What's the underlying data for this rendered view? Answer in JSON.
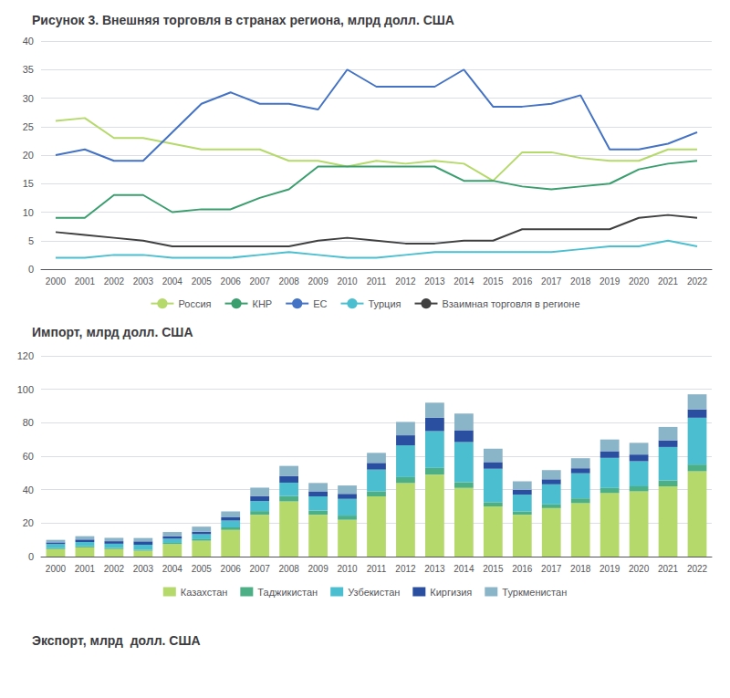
{
  "chart_data": [
    {
      "type": "line",
      "title": "Рисунок 3. Внешняя торговля в странах региона, млрд долл. США",
      "categories": [
        "2000",
        "2001",
        "2002",
        "2003",
        "2004",
        "2005",
        "2006",
        "2007",
        "2008",
        "2009",
        "2010",
        "2011",
        "2012",
        "2013",
        "2014",
        "2015",
        "2016",
        "2017",
        "2018",
        "2019",
        "2020",
        "2021",
        "2022"
      ],
      "series": [
        {
          "name": "Россия",
          "color": "#b5d96a",
          "values": [
            26,
            26.5,
            23,
            23,
            22,
            21,
            21,
            21,
            19,
            19,
            18,
            19,
            18.5,
            19,
            18.5,
            15.5,
            20.5,
            20.5,
            19.5,
            19,
            19,
            21,
            21
          ]
        },
        {
          "name": "КНР",
          "color": "#3a9e6e",
          "values": [
            9,
            9,
            13,
            13,
            10,
            10.5,
            10.5,
            12.5,
            14,
            18,
            18,
            18,
            18,
            18,
            15.5,
            15.5,
            14.5,
            14,
            14.5,
            15,
            17.5,
            18.5,
            19
          ]
        },
        {
          "name": "ЕС",
          "color": "#4472c4",
          "values": [
            20,
            21,
            19,
            19,
            24,
            29,
            31,
            29,
            29,
            28,
            35,
            32,
            32,
            32,
            35,
            28.5,
            28.5,
            29,
            30.5,
            21,
            21,
            22,
            24
          ]
        },
        {
          "name": "Турция",
          "color": "#4bbfcf",
          "values": [
            2,
            2,
            2.5,
            2.5,
            2,
            2,
            2,
            2.5,
            3,
            2.5,
            2,
            2,
            2.5,
            3,
            3,
            3,
            3,
            3,
            3.5,
            4,
            4,
            5,
            4
          ]
        },
        {
          "name": "Взаимная торговля в регионе",
          "color": "#404040",
          "values": [
            6.5,
            6,
            5.5,
            5,
            4,
            4,
            4,
            4,
            4,
            5,
            5.5,
            5,
            4.5,
            4.5,
            5,
            5,
            7,
            7,
            7,
            7,
            9,
            9.5,
            9
          ]
        }
      ],
      "ylim": [
        0,
        40
      ],
      "yticks": [
        0,
        5,
        10,
        15,
        20,
        25,
        30,
        35,
        40
      ],
      "grid": true,
      "legend": "bottom"
    },
    {
      "type": "bar",
      "title": "Импорт, млрд долл. США",
      "categories": [
        "2000",
        "2001",
        "2002",
        "2003",
        "2004",
        "2005",
        "2006",
        "2007",
        "2008",
        "2009",
        "2010",
        "2011",
        "2012",
        "2013",
        "2014",
        "2015",
        "2016",
        "2017",
        "2018",
        "2019",
        "2020",
        "2021",
        "2022"
      ],
      "series": [
        {
          "name": "Казахстан",
          "color": "#b5d96a",
          "values": [
            4.5,
            5.5,
            4.5,
            3.5,
            7.5,
            9.5,
            16,
            25,
            33,
            25,
            22,
            36,
            44,
            49,
            41,
            30,
            25,
            29,
            32,
            38,
            39,
            42,
            51
          ]
        },
        {
          "name": "Таджикистан",
          "color": "#4caf85",
          "values": [
            0.5,
            0.7,
            0.7,
            0.6,
            0.7,
            0.9,
            1.5,
            2.2,
            3.2,
            2.5,
            2.5,
            3,
            3.5,
            4,
            3.5,
            2.5,
            2,
            2.2,
            2.8,
            3,
            3,
            3.5,
            4
          ]
        },
        {
          "name": "Узбекистан",
          "color": "#4bbfcf",
          "values": [
            2.5,
            2.5,
            2.5,
            3,
            2.5,
            3,
            4,
            6,
            8,
            8.5,
            10,
            13,
            19,
            22,
            24,
            20,
            10,
            12,
            15,
            18,
            15,
            20,
            28
          ]
        },
        {
          "name": "Киргизия",
          "color": "#2b4fa0",
          "values": [
            1,
            1.5,
            1.5,
            2,
            1.5,
            1.5,
            2,
            3,
            4,
            3,
            3,
            4,
            6,
            8,
            7,
            4,
            3,
            3,
            3,
            4,
            4,
            4,
            5
          ]
        },
        {
          "name": "Туркменистан",
          "color": "#8ab4c8",
          "values": [
            1.5,
            2,
            2,
            2,
            2.5,
            3,
            3.5,
            5,
            6,
            5,
            5,
            6,
            8,
            9,
            10,
            8,
            5,
            5.5,
            6,
            7,
            7,
            8,
            9
          ]
        }
      ],
      "ylim": [
        0,
        120
      ],
      "yticks": [
        0,
        20,
        40,
        60,
        80,
        100,
        120
      ],
      "grid": true,
      "legend": "bottom",
      "stacked": true,
      "annotations": [
        "Экспорт, млрд  долл. США"
      ]
    }
  ]
}
